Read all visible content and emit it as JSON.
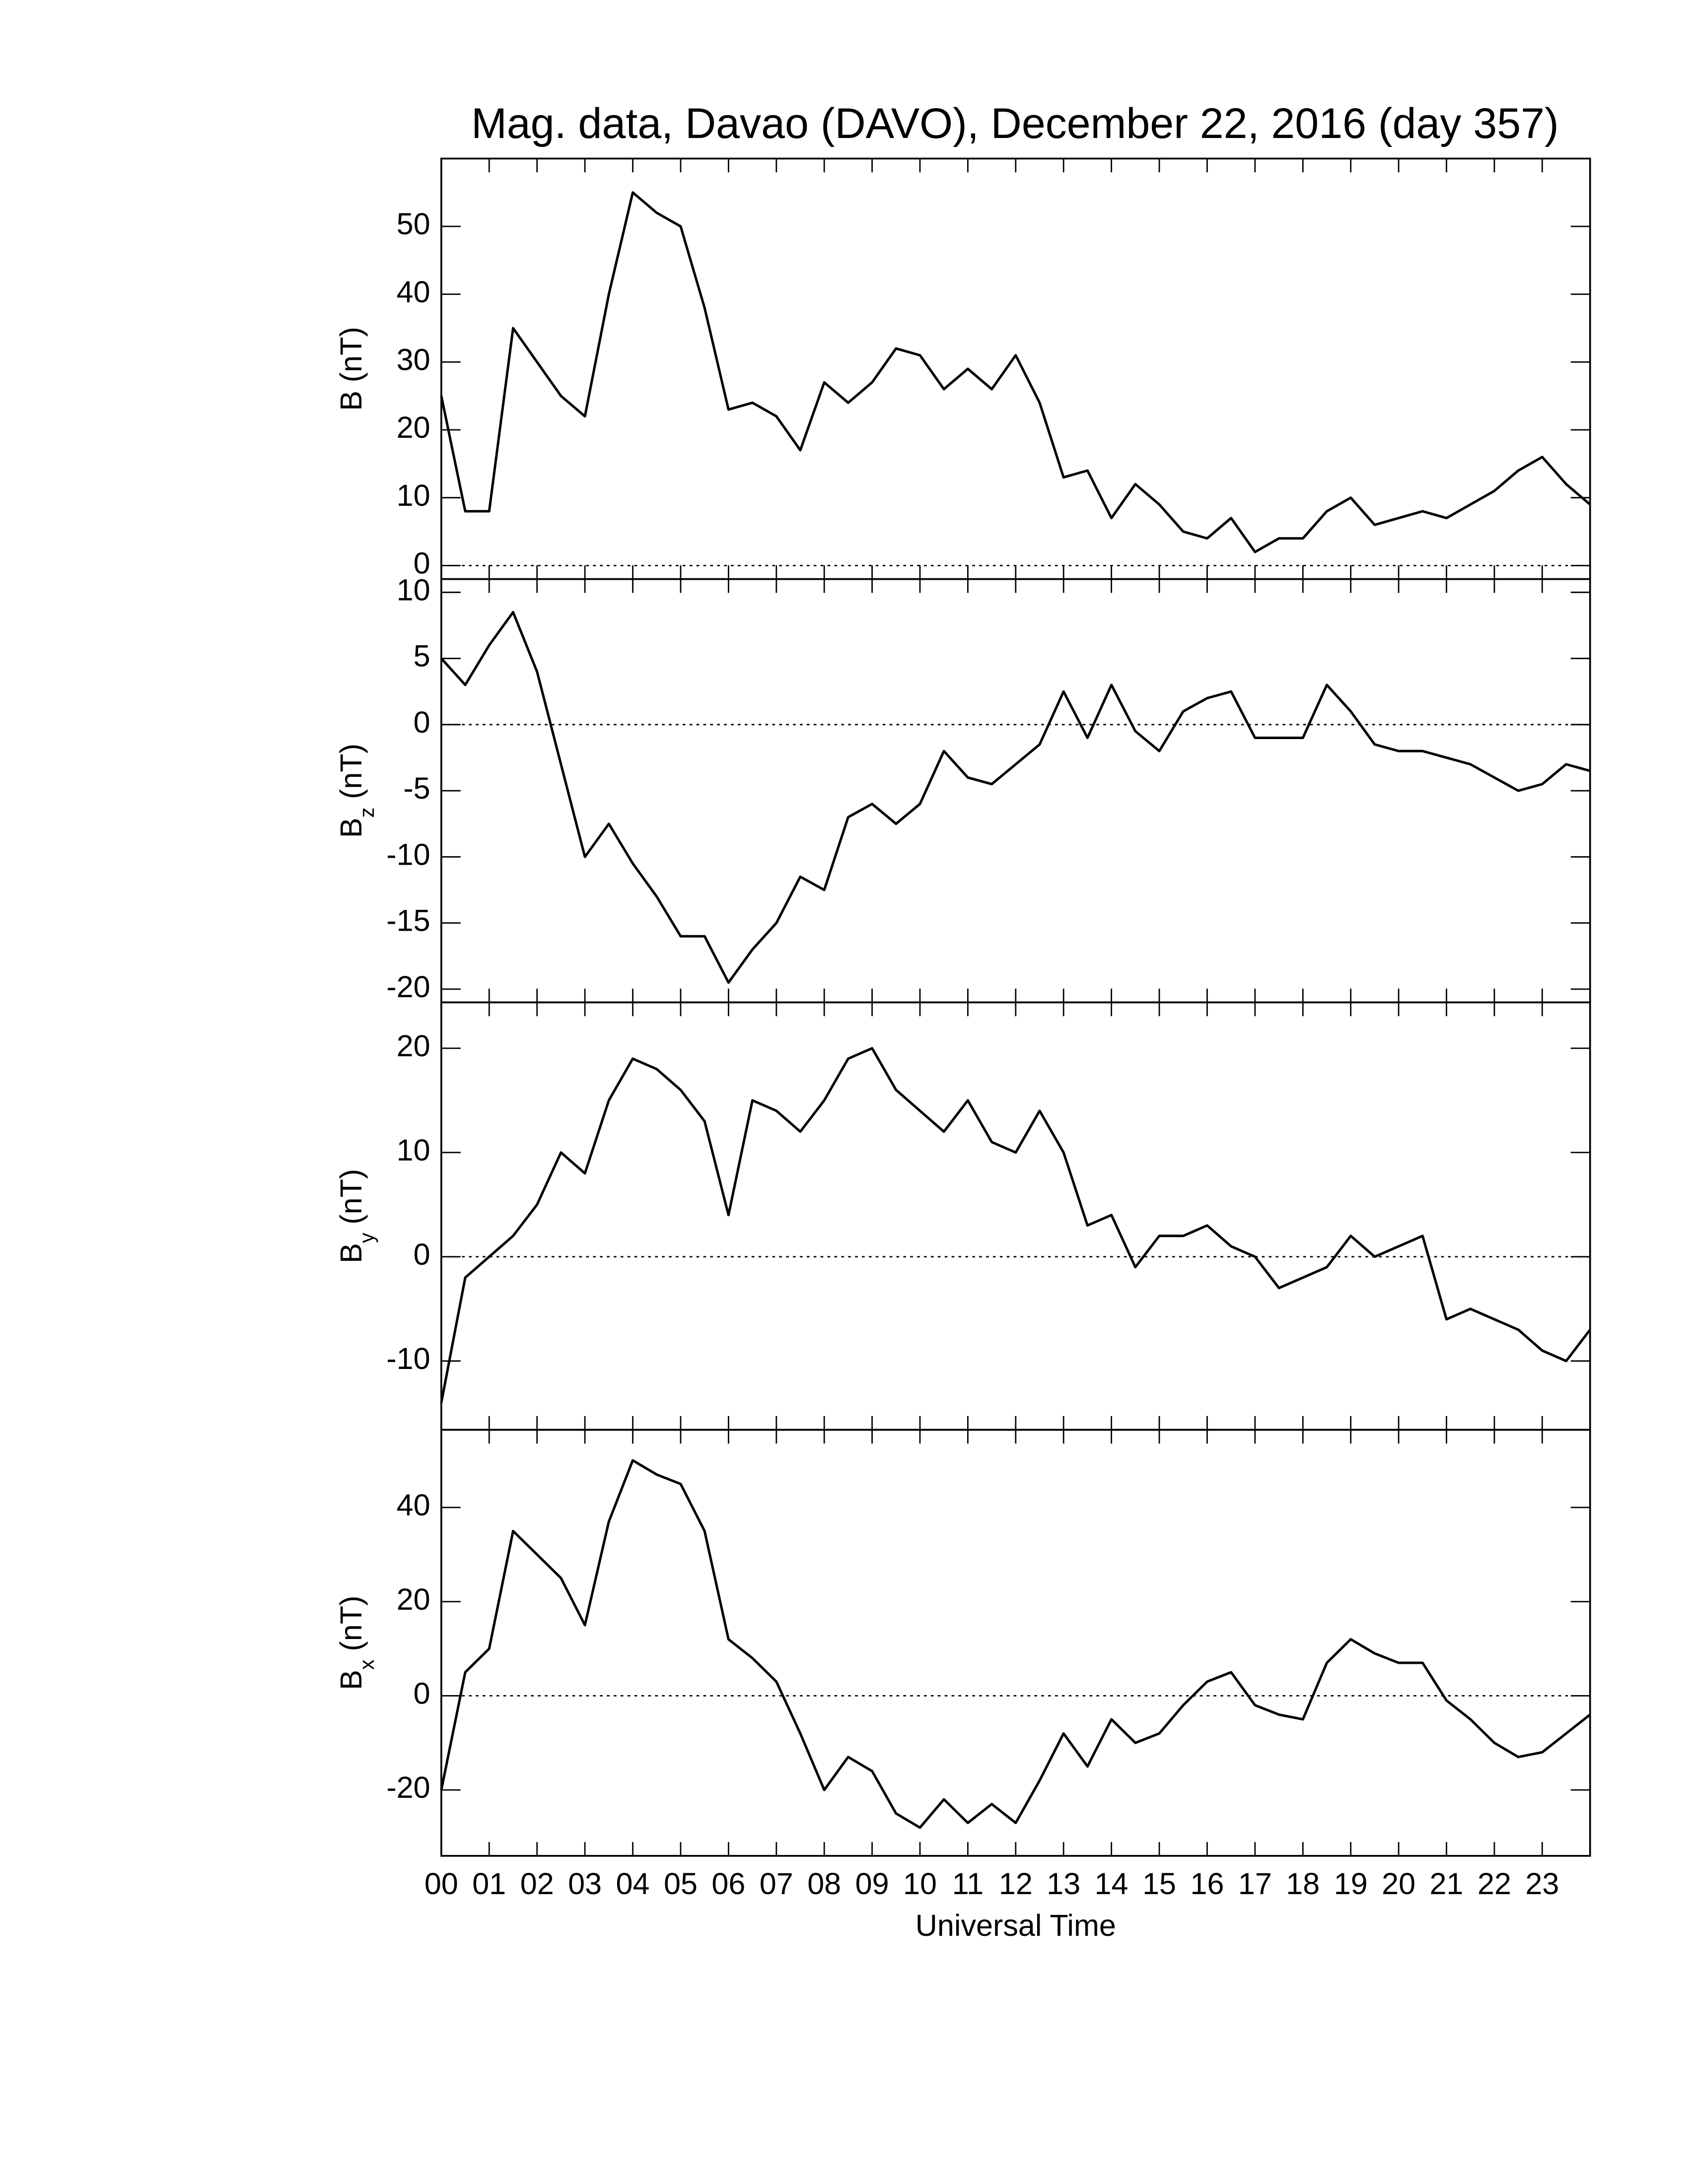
{
  "chart_data": [
    {
      "type": "line",
      "title": "Mag. data, Davao (DAVO), December 22, 2016 (day 357)",
      "ylabel": "B",
      "ylabel_unit": "(nT)",
      "x": [
        0,
        0.5,
        1,
        1.5,
        2,
        2.5,
        3,
        3.5,
        4,
        4.5,
        5,
        5.5,
        6,
        6.5,
        7,
        7.5,
        8,
        8.5,
        9,
        9.5,
        10,
        10.5,
        11,
        11.5,
        12,
        12.5,
        13,
        13.5,
        14,
        14.5,
        15,
        15.5,
        16,
        16.5,
        17,
        17.5,
        18,
        18.5,
        19,
        19.5,
        20,
        20.5,
        21,
        21.5,
        22,
        22.5,
        23,
        23.5,
        24
      ],
      "values": [
        25,
        8,
        8,
        35,
        30,
        25,
        22,
        40,
        55,
        52,
        50,
        38,
        23,
        24,
        22,
        17,
        27,
        24,
        27,
        32,
        31,
        26,
        29,
        26,
        31,
        24,
        13,
        14,
        7,
        12,
        9,
        5,
        4,
        7,
        2,
        4,
        4,
        8,
        10,
        6,
        7,
        8,
        7,
        9,
        11,
        14,
        16,
        12,
        9
      ],
      "color": "#000000",
      "ylim": [
        -2,
        60
      ],
      "yticks": [
        0,
        10,
        20,
        30,
        40,
        50
      ],
      "hline": 0
    },
    {
      "type": "line",
      "ylabel": "B",
      "ylabel_subscript": "z",
      "ylabel_unit": "(nT)",
      "x": [
        0,
        0.5,
        1,
        1.5,
        2,
        2.5,
        3,
        3.5,
        4,
        4.5,
        5,
        5.5,
        6,
        6.5,
        7,
        7.5,
        8,
        8.5,
        9,
        9.5,
        10,
        10.5,
        11,
        11.5,
        12,
        12.5,
        13,
        13.5,
        14,
        14.5,
        15,
        15.5,
        16,
        16.5,
        17,
        17.5,
        18,
        18.5,
        19,
        19.5,
        20,
        20.5,
        21,
        21.5,
        22,
        22.5,
        23,
        23.5,
        24
      ],
      "values": [
        5,
        3,
        6,
        8.5,
        4,
        -3,
        -10,
        -7.5,
        -10.5,
        -13,
        -16,
        -16,
        -19.5,
        -17,
        -15,
        -11.5,
        -12.5,
        -7,
        -6,
        -7.5,
        -6,
        -2,
        -4,
        -4.5,
        -3,
        -1.5,
        2.5,
        -1,
        3,
        -0.5,
        -2,
        1,
        2,
        2.5,
        -1,
        -1,
        -1,
        3,
        1,
        -1.5,
        -2,
        -2,
        -2.5,
        -3,
        -4,
        -5,
        -4.5,
        -3,
        -3.5
      ],
      "color": "#000000",
      "ylim": [
        -21,
        11
      ],
      "yticks": [
        -20,
        -15,
        -10,
        -5,
        0,
        5,
        10
      ],
      "hline": 0
    },
    {
      "type": "line",
      "ylabel": "B",
      "ylabel_subscript": "y",
      "ylabel_unit": "(nT)",
      "x": [
        0,
        0.5,
        1,
        1.5,
        2,
        2.5,
        3,
        3.5,
        4,
        4.5,
        5,
        5.5,
        6,
        6.5,
        7,
        7.5,
        8,
        8.5,
        9,
        9.5,
        10,
        10.5,
        11,
        11.5,
        12,
        12.5,
        13,
        13.5,
        14,
        14.5,
        15,
        15.5,
        16,
        16.5,
        17,
        17.5,
        18,
        18.5,
        19,
        19.5,
        20,
        20.5,
        21,
        21.5,
        22,
        22.5,
        23,
        23.5,
        24
      ],
      "values": [
        -14,
        -2,
        0,
        2,
        5,
        10,
        8,
        15,
        19,
        18,
        16,
        13,
        4,
        15,
        14,
        12,
        15,
        19,
        20,
        16,
        14,
        12,
        15,
        11,
        10,
        14,
        10,
        3,
        4,
        -1,
        2,
        2,
        3,
        1,
        0,
        -3,
        -2,
        -1,
        2,
        0,
        1,
        2,
        -6,
        -5,
        -6,
        -7,
        -9,
        -10,
        -7
      ],
      "color": "#000000",
      "ylim": [
        -16.6,
        24.4
      ],
      "yticks": [
        -10,
        0,
        10,
        20
      ],
      "hline": 0
    },
    {
      "type": "line",
      "ylabel": "B",
      "ylabel_subscript": "x",
      "ylabel_unit": "(nT)",
      "xlabel": "Universal Time",
      "x": [
        0,
        0.5,
        1,
        1.5,
        2,
        2.5,
        3,
        3.5,
        4,
        4.5,
        5,
        5.5,
        6,
        6.5,
        7,
        7.5,
        8,
        8.5,
        9,
        9.5,
        10,
        10.5,
        11,
        11.5,
        12,
        12.5,
        13,
        13.5,
        14,
        14.5,
        15,
        15.5,
        16,
        16.5,
        17,
        17.5,
        18,
        18.5,
        19,
        19.5,
        20,
        20.5,
        21,
        21.5,
        22,
        22.5,
        23,
        23.5,
        24
      ],
      "values": [
        -20,
        5,
        10,
        35,
        30,
        25,
        15,
        37,
        50,
        47,
        45,
        35,
        12,
        8,
        3,
        -8,
        -20,
        -13,
        -16,
        -25,
        -28,
        -22,
        -27,
        -23,
        -27,
        -18,
        -8,
        -15,
        -5,
        -10,
        -8,
        -2,
        3,
        5,
        -2,
        -4,
        -5,
        7,
        12,
        9,
        7,
        7,
        -1,
        -5,
        -10,
        -13,
        -12,
        -8,
        -4
      ],
      "color": "#000000",
      "ylim": [
        -34,
        56.5
      ],
      "yticks": [
        -20,
        0,
        20,
        40
      ],
      "hline": 0,
      "xlim": [
        0,
        24
      ],
      "xticks": [
        {
          "value": 0,
          "label": "00"
        },
        {
          "value": 1,
          "label": "01"
        },
        {
          "value": 2,
          "label": "02"
        },
        {
          "value": 3,
          "label": "03"
        },
        {
          "value": 4,
          "label": "04"
        },
        {
          "value": 5,
          "label": "05"
        },
        {
          "value": 6,
          "label": "06"
        },
        {
          "value": 7,
          "label": "07"
        },
        {
          "value": 8,
          "label": "08"
        },
        {
          "value": 9,
          "label": "09"
        },
        10,
        11,
        12,
        13,
        14,
        15,
        16,
        17,
        18,
        19,
        20,
        21,
        22,
        23
      ]
    }
  ]
}
